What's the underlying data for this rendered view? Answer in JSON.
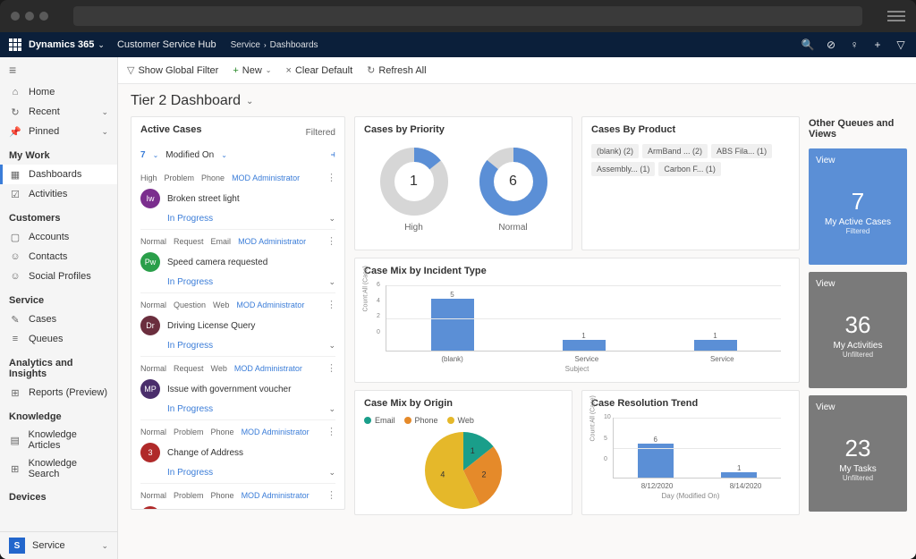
{
  "app": {
    "name": "Dynamics 365",
    "hub": "Customer Service Hub",
    "breadcrumb": [
      "Service",
      "Dashboards"
    ]
  },
  "nav": {
    "top": [
      {
        "icon": "⌂",
        "label": "Home"
      },
      {
        "icon": "↻",
        "label": "Recent",
        "chev": true
      },
      {
        "icon": "📌",
        "label": "Pinned",
        "chev": true
      }
    ],
    "sections": [
      {
        "header": "My Work",
        "items": [
          {
            "icon": "▦",
            "label": "Dashboards",
            "active": true
          },
          {
            "icon": "☑",
            "label": "Activities"
          }
        ]
      },
      {
        "header": "Customers",
        "items": [
          {
            "icon": "▢",
            "label": "Accounts"
          },
          {
            "icon": "☺",
            "label": "Contacts"
          },
          {
            "icon": "☺",
            "label": "Social Profiles"
          }
        ]
      },
      {
        "header": "Service",
        "items": [
          {
            "icon": "✎",
            "label": "Cases"
          },
          {
            "icon": "≡",
            "label": "Queues"
          }
        ]
      },
      {
        "header": "Analytics and Insights",
        "items": [
          {
            "icon": "⊞",
            "label": "Reports (Preview)"
          }
        ]
      },
      {
        "header": "Knowledge",
        "items": [
          {
            "icon": "▤",
            "label": "Knowledge Articles"
          },
          {
            "icon": "⊞",
            "label": "Knowledge Search"
          }
        ]
      },
      {
        "header": "Devices",
        "items": []
      }
    ],
    "footer": {
      "badge": "S",
      "label": "Service"
    }
  },
  "cmdbar": {
    "filter": "Show Global Filter",
    "new": "New",
    "clear": "Clear Default",
    "refresh": "Refresh All"
  },
  "dashboard": {
    "title": "Tier 2 Dashboard"
  },
  "activeCases": {
    "title": "Active Cases",
    "filtered": "Filtered",
    "count": "7",
    "sortBy": "Modified On",
    "rows": [
      {
        "priority": "High",
        "type": "Problem",
        "origin": "Phone",
        "owner": "MOD Administrator",
        "avatar": "Iw",
        "color": "#7b2e8e",
        "subject": "Broken street light",
        "status": "In Progress"
      },
      {
        "priority": "Normal",
        "type": "Request",
        "origin": "Email",
        "owner": "MOD Administrator",
        "avatar": "Pw",
        "color": "#2a9f4a",
        "subject": "Speed camera requested",
        "status": "In Progress"
      },
      {
        "priority": "Normal",
        "type": "Question",
        "origin": "Web",
        "owner": "MOD Administrator",
        "avatar": "Dr",
        "color": "#6b2e3e",
        "subject": "Driving License Query",
        "status": "In Progress"
      },
      {
        "priority": "Normal",
        "type": "Request",
        "origin": "Web",
        "owner": "MOD Administrator",
        "avatar": "MP",
        "color": "#4a2e6b",
        "subject": "Issue with government voucher",
        "status": "In Progress"
      },
      {
        "priority": "Normal",
        "type": "Problem",
        "origin": "Phone",
        "owner": "MOD Administrator",
        "avatar": "3",
        "color": "#b02a2a",
        "subject": "Change of Address",
        "status": "In Progress"
      },
      {
        "priority": "Normal",
        "type": "Problem",
        "origin": "Phone",
        "owner": "MOD Administrator",
        "avatar": "",
        "color": "#b02a2a",
        "subject": "",
        "status": ""
      }
    ]
  },
  "priority": {
    "title": "Cases by Priority",
    "colors": {
      "filled": "#5b8fd6",
      "empty": "#d6d6d6"
    },
    "items": [
      {
        "label": "High",
        "value": 1,
        "total": 7
      },
      {
        "label": "Normal",
        "value": 6,
        "total": 7
      }
    ]
  },
  "product": {
    "title": "Cases By Product",
    "tags": [
      "(blank) (2)",
      "ArmBand ... (2)",
      "ABS Fila... (1)",
      "Assembly... (1)",
      "Carbon F... (1)"
    ]
  },
  "incident": {
    "title": "Case Mix by Incident Type",
    "ylabel": "Count:All (Case)",
    "xlabel": "Subject",
    "ymax": 6,
    "bar_color": "#5b8fd6",
    "items": [
      {
        "label": "(blank)",
        "value": 5
      },
      {
        "label": "Service",
        "value": 1
      },
      {
        "label": "Service",
        "value": 1
      }
    ]
  },
  "origin": {
    "title": "Case Mix by Origin",
    "legend": [
      {
        "label": "Email",
        "color": "#1a9e8a"
      },
      {
        "label": "Phone",
        "color": "#e58a2a"
      },
      {
        "label": "Web",
        "color": "#e5b82a"
      }
    ],
    "slices": [
      {
        "value": 1,
        "color": "#1a9e8a"
      },
      {
        "value": 2,
        "color": "#e58a2a"
      },
      {
        "value": 4,
        "color": "#e5b82a"
      }
    ]
  },
  "trend": {
    "title": "Case Resolution Trend",
    "ylabel": "Count:All (Case)",
    "xlabel": "Day (Modified On)",
    "ymax": 10,
    "bar_color": "#5b8fd6",
    "items": [
      {
        "label": "8/12/2020",
        "value": 6
      },
      {
        "label": "8/14/2020",
        "value": 1
      }
    ]
  },
  "tiles": {
    "title": "Other Queues and Views",
    "view": "View",
    "items": [
      {
        "num": "7",
        "label": "My Active Cases",
        "sub": "Filtered",
        "color": "#5b8fd6"
      },
      {
        "num": "36",
        "label": "My Activities",
        "sub": "Unfiltered",
        "color": "#7a7a7a"
      },
      {
        "num": "23",
        "label": "My Tasks",
        "sub": "Unfiltered",
        "color": "#7a7a7a"
      }
    ]
  }
}
